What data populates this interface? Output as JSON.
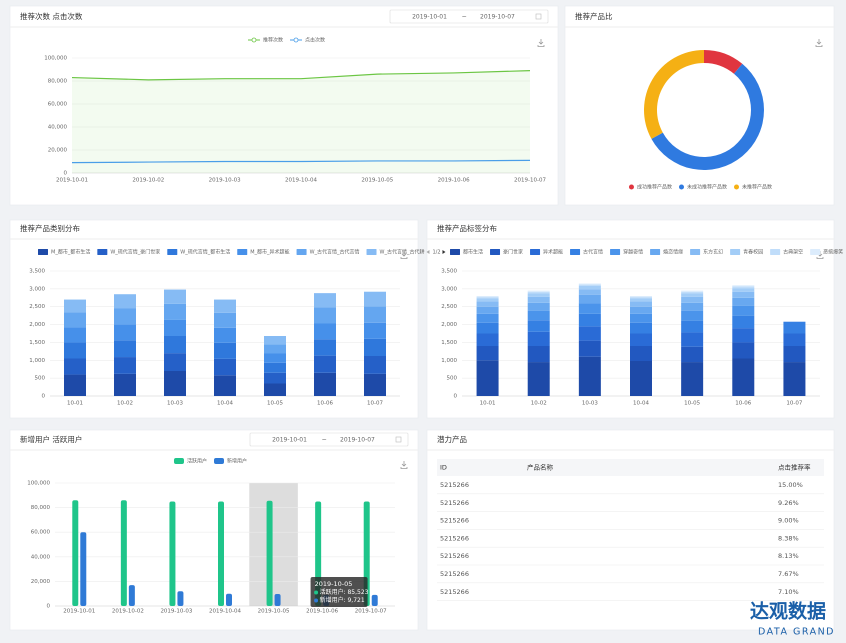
{
  "chart_data": [
    {
      "type": "line",
      "title": "推荐次数 点击次数",
      "date_range": [
        "2019-10-01",
        "2019-10-07"
      ],
      "date_separator": "~",
      "categories": [
        "2019-10-01",
        "2019-10-02",
        "2019-10-03",
        "2019-10-04",
        "2019-10-05",
        "2019-10-06",
        "2019-10-07"
      ],
      "series": [
        {
          "name": "推荐次数",
          "color": "#6cc644",
          "values": [
            83000,
            81000,
            82000,
            82000,
            86000,
            87000,
            89000
          ],
          "area": true
        },
        {
          "name": "点击次数",
          "color": "#4a9ee8",
          "values": [
            9000,
            9500,
            10000,
            10000,
            10500,
            10500,
            11000
          ]
        }
      ],
      "ylim": [
        0,
        100000
      ],
      "yticks": [
        0,
        {
          "value": 20000,
          "label": "20,000"
        },
        {
          "value": 40000,
          "label": "40,000"
        },
        {
          "value": 60000,
          "label": "60,000"
        },
        {
          "value": 80000,
          "label": "80,000"
        },
        {
          "value": 100000,
          "label": "100,000"
        }
      ],
      "grid": true
    },
    {
      "type": "pie",
      "title": "推荐产品比",
      "donut": true,
      "categories": [
        "成功推荐产品数",
        "未成功推荐产品数",
        "未推荐产品数"
      ],
      "values": [
        11,
        56,
        33
      ],
      "colors": [
        "#e0353f",
        "#2f7ae0",
        "#f5b014"
      ]
    },
    {
      "type": "stacked-bar",
      "title": "推荐产品类别分布",
      "legend_page": "1/2",
      "categories": [
        "10-01",
        "10-02",
        "10-03",
        "10-04",
        "10-05",
        "10-06",
        "10-07"
      ],
      "series": [
        {
          "name": "M_都市_都市生活",
          "color": "#1e4aa8",
          "values": [
            600,
            620,
            700,
            580,
            350,
            650,
            620
          ]
        },
        {
          "name": "W_现代言情_豪门世家",
          "color": "#2560c8",
          "values": [
            450,
            470,
            500,
            460,
            300,
            480,
            500
          ]
        },
        {
          "name": "W_现代言情_都市生活",
          "color": "#2f78dc",
          "values": [
            450,
            470,
            480,
            450,
            280,
            460,
            480
          ]
        },
        {
          "name": "M_都市_异术超能",
          "color": "#4690ea",
          "values": [
            420,
            440,
            450,
            420,
            260,
            440,
            450
          ]
        },
        {
          "name": "W_古代言情_古代言情",
          "color": "#64a6f0",
          "values": [
            420,
            450,
            450,
            420,
            260,
            450,
            460
          ]
        },
        {
          "name": "W_古代言情_古代耕",
          "color": "#86bbf4",
          "values": [
            360,
            400,
            400,
            370,
            230,
            400,
            410
          ]
        }
      ],
      "ylim": [
        0,
        3500
      ],
      "yticks": [
        0,
        500,
        {
          "value": 1000,
          "label": "1,000"
        },
        {
          "value": 1500,
          "label": "1,500"
        },
        {
          "value": 2000,
          "label": "2,000"
        },
        {
          "value": 2500,
          "label": "2,500"
        },
        {
          "value": 3000,
          "label": "3,000"
        },
        {
          "value": 3500,
          "label": "3,500"
        }
      ],
      "grid": true
    },
    {
      "type": "stacked-bar",
      "title": "推荐产品标签分布",
      "categories": [
        "10-01",
        "10-02",
        "10-03",
        "10-04",
        "10-05",
        "10-06",
        "10-07"
      ],
      "series": [
        {
          "name": "都市生活",
          "color": "#1e4aa8",
          "values": [
            1000,
            950,
            1100,
            980,
            950,
            1050,
            950
          ]
        },
        {
          "name": "豪门世家",
          "color": "#2258c0",
          "values": [
            400,
            450,
            450,
            420,
            430,
            450,
            450
          ]
        },
        {
          "name": "异术超能",
          "color": "#2a6bd6",
          "values": [
            350,
            400,
            400,
            350,
            400,
            400,
            350
          ]
        },
        {
          "name": "古代言情",
          "color": "#3580e3",
          "values": [
            300,
            320,
            350,
            300,
            330,
            350,
            330
          ]
        },
        {
          "name": "穿越奇情",
          "color": "#4b94eb",
          "values": [
            250,
            270,
            300,
            250,
            280,
            280,
            0
          ]
        },
        {
          "name": "婚恋情缘",
          "color": "#68a8f0",
          "values": [
            200,
            220,
            230,
            200,
            220,
            220,
            0
          ]
        },
        {
          "name": "东方玄幻",
          "color": "#86bbf4",
          "values": [
            150,
            170,
            160,
            150,
            170,
            170,
            0
          ]
        },
        {
          "name": "青春校园",
          "color": "#a3cdf7",
          "values": [
            80,
            90,
            90,
            80,
            90,
            100,
            0
          ]
        },
        {
          "name": "古典架空",
          "color": "#c0ddfa",
          "values": [
            40,
            50,
            40,
            40,
            50,
            50,
            0
          ]
        },
        {
          "name": "恶搞爆笑",
          "color": "#dcecfc",
          "values": [
            30,
            30,
            30,
            30,
            30,
            30,
            0
          ]
        }
      ],
      "ylim": [
        0,
        3500
      ],
      "yticks": [
        0,
        500,
        {
          "value": 1000,
          "label": "1,000"
        },
        {
          "value": 1500,
          "label": "1,500"
        },
        {
          "value": 2000,
          "label": "2,000"
        },
        {
          "value": 2500,
          "label": "2,500"
        },
        {
          "value": 3000,
          "label": "3,000"
        },
        {
          "value": 3500,
          "label": "3,500"
        }
      ],
      "grid": true
    },
    {
      "type": "grouped-bar",
      "title": "新增用户 活跃用户",
      "date_range": [
        "2019-10-01",
        "2019-10-07"
      ],
      "date_separator": "~",
      "categories": [
        "2019-10-01",
        "2019-10-02",
        "2019-10-03",
        "2019-10-04",
        "2019-10-05",
        "2019-10-06",
        "2019-10-07"
      ],
      "series": [
        {
          "name": "活跃用户",
          "color": "#1fc58a",
          "values": [
            86000,
            86000,
            85000,
            85000,
            85523,
            85000,
            85000
          ]
        },
        {
          "name": "新增用户",
          "color": "#2f7ad6",
          "values": [
            60000,
            17000,
            12000,
            10000,
            9721,
            9000,
            9000
          ]
        }
      ],
      "ylim": [
        0,
        100000
      ],
      "yticks": [
        0,
        {
          "value": 20000,
          "label": "20,000"
        },
        {
          "value": 40000,
          "label": "40,000"
        },
        {
          "value": 60000,
          "label": "60,000"
        },
        {
          "value": 80000,
          "label": "80,000"
        },
        {
          "value": 100000,
          "label": "100,000"
        }
      ],
      "grid": true,
      "tooltip": {
        "title": "2019-10-05",
        "lines": [
          "活跃用户: 85,523",
          "新增用户: 9,721"
        ]
      }
    }
  ],
  "table": {
    "title": "潜力产品",
    "columns": [
      "ID",
      "产品名称",
      "点击推荐率"
    ],
    "rows": [
      {
        "id": "5215266",
        "rate": "15.00%"
      },
      {
        "id": "5215266",
        "rate": "9.26%"
      },
      {
        "id": "5215266",
        "rate": "9.00%"
      },
      {
        "id": "5215266",
        "rate": "8.38%"
      },
      {
        "id": "5215266",
        "rate": "8.13%"
      },
      {
        "id": "5215266",
        "rate": "7.67%"
      },
      {
        "id": "5215266",
        "rate": "7.10%"
      }
    ]
  },
  "brand": {
    "name": "达观数据",
    "tagline": "DATA GRAND"
  }
}
